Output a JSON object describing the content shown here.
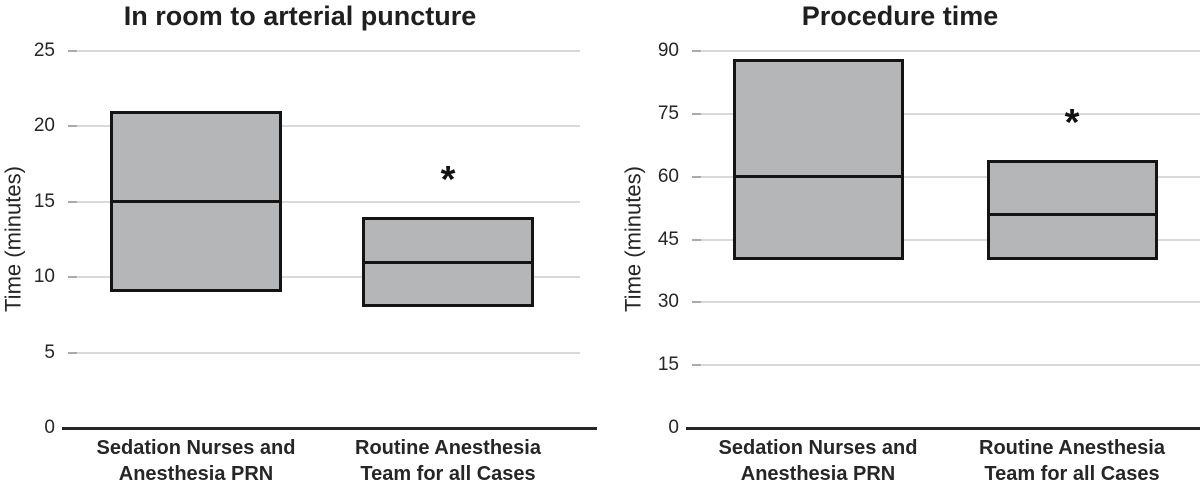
{
  "figure": {
    "background": "#ffffff",
    "significance_marker": "*"
  },
  "chart_data": [
    {
      "type": "box",
      "title": "In room to arterial puncture",
      "ylabel": "Time (minutes)",
      "ylim": [
        0,
        25
      ],
      "yticks": [
        0,
        5,
        10,
        15,
        20,
        25
      ],
      "grid": true,
      "legend": "none",
      "categories": [
        "Sedation Nurses and\nAnesthesia PRN",
        "Routine Anesthesia\nTeam for all Cases"
      ],
      "boxes": [
        {
          "q1": 9,
          "median": 15,
          "q3": 21,
          "annotation": ""
        },
        {
          "q1": 8,
          "median": 11,
          "q3": 14,
          "annotation": "*"
        }
      ],
      "colors": {
        "box_fill": "#b4b6b8",
        "box_border": "#141414",
        "median": "#141414",
        "gridline": "#d9d9d9",
        "tick_stub": "#ababab",
        "axis": "#262626",
        "text": "#262626"
      }
    },
    {
      "type": "box",
      "title": "Procedure time",
      "ylabel": "Time (minutes)",
      "ylim": [
        0,
        90
      ],
      "yticks": [
        0,
        15,
        30,
        45,
        60,
        75,
        90
      ],
      "grid": true,
      "legend": "none",
      "categories": [
        "Sedation Nurses and\nAnesthesia PRN",
        "Routine Anesthesia\nTeam for all Cases"
      ],
      "boxes": [
        {
          "q1": 40,
          "median": 60,
          "q3": 88,
          "annotation": ""
        },
        {
          "q1": 40,
          "median": 51,
          "q3": 64,
          "annotation": "*"
        }
      ],
      "colors": {
        "box_fill": "#b4b6b8",
        "box_border": "#141414",
        "median": "#141414",
        "gridline": "#d9d9d9",
        "tick_stub": "#ababab",
        "axis": "#262626",
        "text": "#262626"
      }
    }
  ]
}
